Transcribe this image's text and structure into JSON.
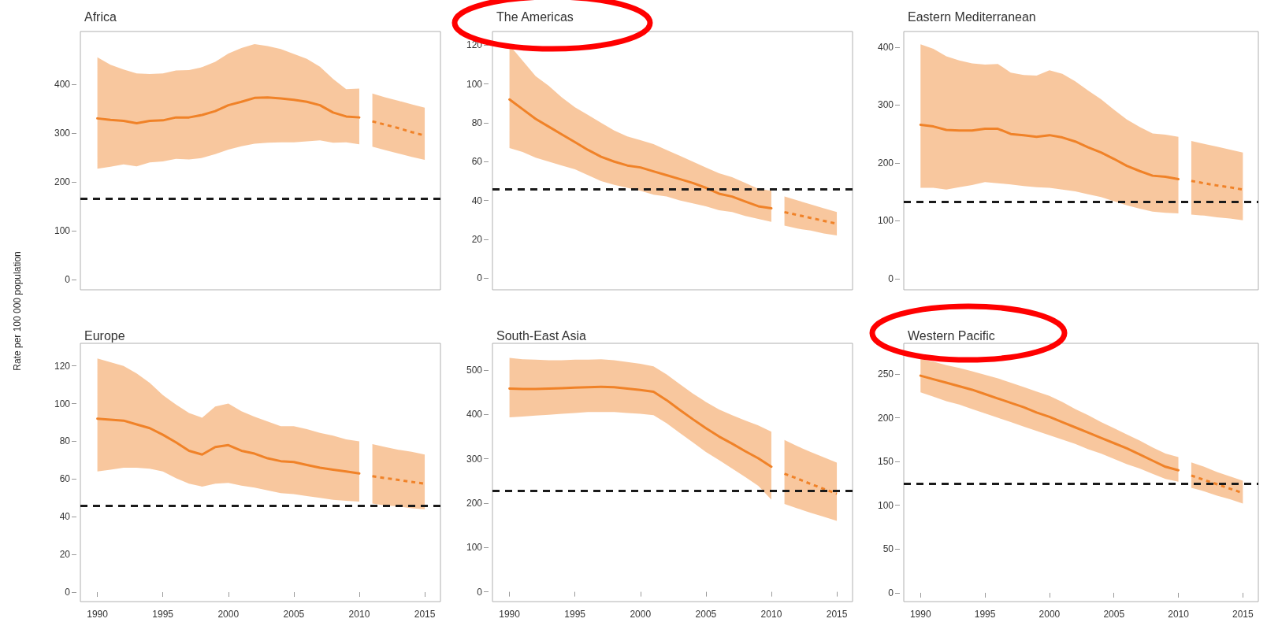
{
  "chart_data": [
    {
      "type": "line",
      "title": "Africa",
      "ylabel": "Rate per 100 000 population",
      "xlim": [
        1988.7,
        2016.2
      ],
      "ylim": [
        -21,
        508
      ],
      "yticks": [
        0,
        100,
        200,
        300,
        400
      ],
      "tick_labels": "y",
      "ref_lines": [
        {
          "axis": "y",
          "value": 166,
          "line_style": "dashed"
        }
      ],
      "series": [
        {
          "color": "#f08228",
          "line_style": "solid",
          "x": [
            1990,
            1991,
            1992,
            1993,
            1994,
            1995,
            1996,
            1997,
            1998,
            1999,
            2000,
            2001,
            2002,
            2003,
            2004,
            2005,
            2006,
            2007,
            2008,
            2009,
            2010
          ],
          "values": [
            330,
            327,
            325,
            320,
            325,
            326,
            332,
            332,
            337,
            345,
            357,
            364,
            372,
            373,
            371,
            368,
            364,
            357,
            342,
            334,
            332
          ],
          "upper": [
            455,
            440,
            430,
            422,
            421,
            422,
            428,
            429,
            435,
            446,
            463,
            474,
            482,
            478,
            472,
            462,
            452,
            436,
            411,
            390,
            391
          ],
          "lower": [
            227,
            231,
            236,
            232,
            240,
            242,
            247,
            246,
            249,
            257,
            266,
            273,
            278,
            280,
            281,
            281,
            283,
            285,
            280,
            281,
            277
          ]
        },
        {
          "color": "#f08228",
          "line_style": "dotted",
          "x": [
            2011,
            2012,
            2013,
            2014,
            2015
          ],
          "values": [
            324,
            317,
            310,
            302,
            295
          ],
          "upper": [
            381,
            373,
            366,
            359,
            352
          ],
          "lower": [
            272,
            265,
            258,
            251,
            245
          ]
        }
      ]
    },
    {
      "type": "line",
      "title": "The Americas",
      "xlim": [
        1988.7,
        2016.2
      ],
      "ylim": [
        -6,
        127
      ],
      "yticks": [
        0,
        20,
        40,
        60,
        80,
        100,
        120
      ],
      "tick_labels": "y",
      "ref_lines": [
        {
          "axis": "y",
          "value": 46,
          "line_style": "dashed"
        }
      ],
      "series": [
        {
          "color": "#f08228",
          "line_style": "solid",
          "x": [
            1990,
            1991,
            1992,
            1993,
            1994,
            1995,
            1996,
            1997,
            1998,
            1999,
            2000,
            2001,
            2002,
            2003,
            2004,
            2005,
            2006,
            2007,
            2008,
            2009,
            2010
          ],
          "values": [
            92,
            87,
            82,
            78,
            74,
            70,
            66,
            62.5,
            60,
            58,
            57,
            55,
            53,
            51,
            49,
            46.5,
            43.5,
            42,
            39.5,
            37,
            36
          ],
          "upper": [
            120,
            112,
            104,
            99,
            93,
            88,
            84,
            80,
            76,
            73,
            71,
            69,
            66,
            63,
            60,
            57,
            54,
            52,
            49,
            46,
            45
          ],
          "lower": [
            67,
            65,
            62,
            60,
            58,
            56,
            53,
            50,
            48,
            46.5,
            45,
            43,
            42,
            40,
            38.5,
            37,
            35,
            34,
            32,
            30.5,
            29
          ]
        },
        {
          "color": "#f08228",
          "line_style": "dotted",
          "x": [
            2011,
            2012,
            2013,
            2014,
            2015
          ],
          "values": [
            34,
            32.5,
            31,
            29.5,
            28
          ],
          "upper": [
            42,
            40,
            38,
            36,
            34
          ],
          "lower": [
            27,
            25.5,
            24.5,
            23,
            22
          ]
        }
      ]
    },
    {
      "type": "line",
      "title": "Eastern Mediterranean",
      "xlim": [
        1988.7,
        2016.2
      ],
      "ylim": [
        -19,
        427
      ],
      "yticks": [
        0,
        100,
        200,
        300,
        400
      ],
      "tick_labels": "y",
      "ref_lines": [
        {
          "axis": "y",
          "value": 133,
          "line_style": "dashed"
        }
      ],
      "series": [
        {
          "color": "#f08228",
          "line_style": "solid",
          "x": [
            1990,
            1991,
            1992,
            1993,
            1994,
            1995,
            1996,
            1997,
            1998,
            1999,
            2000,
            2001,
            2002,
            2003,
            2004,
            2005,
            2006,
            2007,
            2008,
            2009,
            2010
          ],
          "values": [
            266,
            263,
            257,
            256,
            256,
            259,
            259,
            250,
            248,
            245,
            248,
            244,
            237,
            227,
            218,
            207,
            195,
            186,
            178,
            176,
            172
          ],
          "upper": [
            405,
            397,
            384,
            377,
            372,
            370,
            371,
            356,
            352,
            351,
            360,
            354,
            341,
            325,
            310,
            292,
            275,
            262,
            251,
            249,
            245
          ],
          "lower": [
            157,
            157,
            154,
            158,
            162,
            167,
            165,
            163,
            160,
            158,
            157,
            154,
            151,
            146,
            141,
            134,
            127,
            121,
            116,
            114,
            113
          ]
        },
        {
          "color": "#f08228",
          "line_style": "dotted",
          "x": [
            2011,
            2012,
            2013,
            2014,
            2015
          ],
          "values": [
            169,
            165,
            161,
            158,
            154
          ],
          "upper": [
            238,
            233,
            228,
            223,
            218
          ],
          "lower": [
            111,
            109,
            106,
            104,
            101
          ]
        }
      ]
    },
    {
      "type": "line",
      "title": "Europe",
      "xlim": [
        1988.7,
        2016.2
      ],
      "ylim": [
        -5,
        132
      ],
      "xticks": [
        1990,
        1995,
        2000,
        2005,
        2010,
        2015
      ],
      "yticks": [
        0,
        20,
        40,
        60,
        80,
        100,
        120
      ],
      "ref_lines": [
        {
          "axis": "y",
          "value": 46,
          "line_style": "dashed"
        }
      ],
      "series": [
        {
          "color": "#f08228",
          "line_style": "solid",
          "x": [
            1990,
            1991,
            1992,
            1993,
            1994,
            1995,
            1996,
            1997,
            1998,
            1999,
            2000,
            2001,
            2002,
            2003,
            2004,
            2005,
            2006,
            2007,
            2008,
            2009,
            2010
          ],
          "values": [
            92,
            91.5,
            91,
            89,
            87,
            83.5,
            79.5,
            75,
            73,
            77,
            78,
            75,
            73.5,
            71,
            69.5,
            69,
            67.5,
            66,
            65,
            64,
            63
          ],
          "upper": [
            124,
            122,
            120,
            116,
            111,
            104.5,
            99.5,
            95,
            92.5,
            98.5,
            100,
            96,
            93,
            90.5,
            88,
            88,
            86.5,
            84.5,
            83,
            81,
            80
          ],
          "lower": [
            64,
            65,
            66,
            66,
            65.5,
            64,
            60.5,
            57.5,
            56,
            57.5,
            58,
            56.5,
            55.5,
            54,
            52.5,
            52,
            51,
            50,
            49,
            48.5,
            48
          ]
        },
        {
          "color": "#f08228",
          "line_style": "dotted",
          "x": [
            2011,
            2012,
            2013,
            2014,
            2015
          ],
          "values": [
            61.5,
            60.5,
            59.5,
            58.5,
            57.5
          ],
          "upper": [
            78.5,
            77,
            75.5,
            74.5,
            73
          ],
          "lower": [
            47,
            46,
            45.5,
            44.5,
            44
          ]
        }
      ]
    },
    {
      "type": "line",
      "title": "South-East Asia",
      "xlim": [
        1988.7,
        2016.2
      ],
      "ylim": [
        -22,
        560
      ],
      "xticks": [
        1990,
        1995,
        2000,
        2005,
        2010,
        2015
      ],
      "yticks": [
        0,
        100,
        200,
        300,
        400,
        500
      ],
      "ref_lines": [
        {
          "axis": "y",
          "value": 227,
          "line_style": "dashed"
        }
      ],
      "series": [
        {
          "color": "#f08228",
          "line_style": "solid",
          "x": [
            1990,
            1991,
            1992,
            1993,
            1994,
            1995,
            1996,
            1997,
            1998,
            1999,
            2000,
            2001,
            2002,
            2003,
            2004,
            2005,
            2006,
            2007,
            2008,
            2009,
            2010
          ],
          "values": [
            458,
            457,
            457,
            458,
            459,
            460,
            461,
            462,
            461,
            458,
            455,
            451,
            432,
            410,
            389,
            369,
            350,
            334,
            317,
            301,
            282
          ],
          "upper": [
            527,
            524,
            523,
            522,
            522,
            523,
            523,
            524,
            522,
            518,
            514,
            508,
            490,
            468,
            447,
            428,
            411,
            398,
            386,
            375,
            361
          ],
          "lower": [
            393,
            395,
            397,
            399,
            401,
            403,
            405,
            405,
            405,
            403,
            401,
            398,
            380,
            358,
            337,
            315,
            297,
            278,
            259,
            239,
            208
          ]
        },
        {
          "color": "#f08228",
          "line_style": "dotted",
          "x": [
            2011,
            2012,
            2013,
            2014,
            2015
          ],
          "values": [
            266,
            255,
            243,
            232,
            221
          ],
          "upper": [
            342,
            328,
            315,
            303,
            291
          ],
          "lower": [
            198,
            188,
            178,
            169,
            160
          ]
        }
      ]
    },
    {
      "type": "line",
      "title": "Western Pacific",
      "xlim": [
        1988.7,
        2016.2
      ],
      "ylim": [
        -10,
        285
      ],
      "xticks": [
        1990,
        1995,
        2000,
        2005,
        2010,
        2015
      ],
      "yticks": [
        0,
        50,
        100,
        150,
        200,
        250
      ],
      "ref_lines": [
        {
          "axis": "y",
          "value": 125,
          "line_style": "dashed"
        }
      ],
      "series": [
        {
          "color": "#f08228",
          "line_style": "solid",
          "x": [
            1990,
            1991,
            1992,
            1993,
            1994,
            1995,
            1996,
            1997,
            1998,
            1999,
            2000,
            2001,
            2002,
            2003,
            2004,
            2005,
            2006,
            2007,
            2008,
            2009,
            2010
          ],
          "values": [
            248,
            244,
            240,
            236,
            232,
            227,
            222,
            217,
            212,
            206,
            201,
            195,
            189,
            183,
            177,
            171,
            165,
            158,
            151,
            144,
            140
          ],
          "upper": [
            267,
            264,
            260,
            257,
            253,
            249,
            245,
            240,
            235,
            230,
            225,
            218,
            210,
            203,
            195,
            188,
            181,
            174,
            166,
            159,
            155
          ],
          "lower": [
            229,
            224,
            219,
            215,
            210,
            205,
            200,
            195,
            190,
            185,
            180,
            175,
            170,
            164,
            159,
            153,
            147,
            142,
            136,
            130,
            127
          ]
        },
        {
          "color": "#f08228",
          "line_style": "dotted",
          "x": [
            2011,
            2012,
            2013,
            2014,
            2015
          ],
          "values": [
            134,
            129,
            124,
            119,
            114
          ],
          "upper": [
            149,
            144,
            138,
            133,
            128
          ],
          "lower": [
            120,
            116,
            111,
            107,
            102
          ]
        }
      ]
    }
  ]
}
